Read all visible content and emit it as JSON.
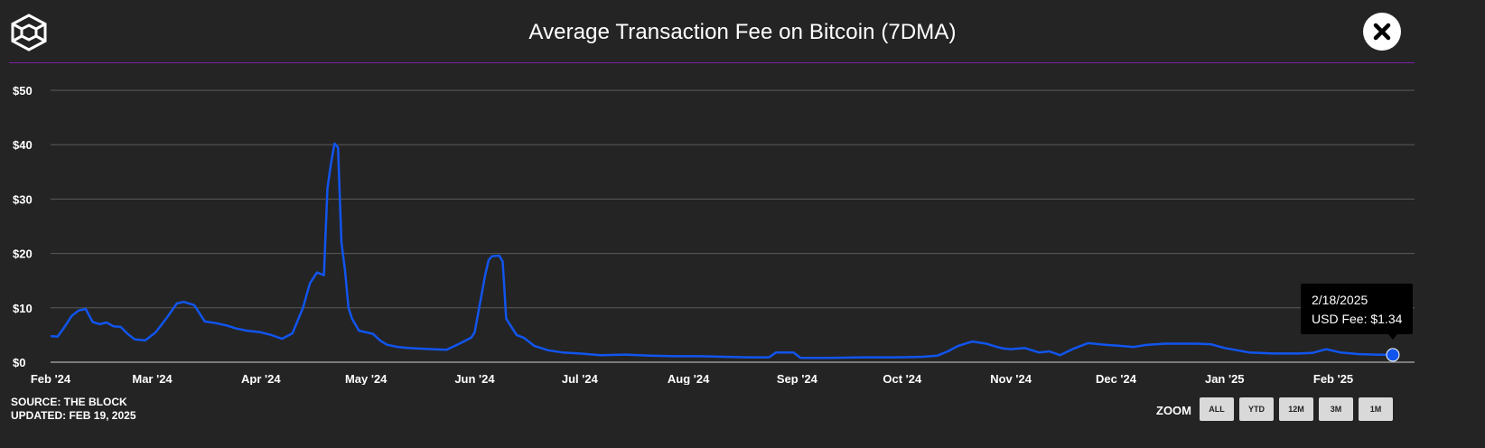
{
  "header": {
    "title": "Average Transaction Fee on Bitcoin (7DMA)",
    "logo_icon": "cube-logo-icon",
    "close_icon": "close-icon"
  },
  "footer": {
    "source": "SOURCE: THE BLOCK",
    "updated": "UPDATED: FEB 19, 2025",
    "zoom_label": "ZOOM",
    "zoom_buttons": [
      "ALL",
      "YTD",
      "12M",
      "3M",
      "1M"
    ]
  },
  "tooltip": {
    "date": "2/18/2025",
    "value_text": "USD Fee: $1.34"
  },
  "colors": {
    "line": "#1155ee",
    "accent_divider": "#7a1fa2",
    "background": "#242424",
    "grid": "#5a5a5a"
  },
  "chart_data": {
    "type": "line",
    "title": "Average Transaction Fee on Bitcoin (7DMA)",
    "xlabel": "",
    "ylabel": "",
    "ylim": [
      0,
      50
    ],
    "y_ticks": [
      0,
      10,
      20,
      30,
      40,
      50
    ],
    "y_tick_labels": [
      "$0",
      "$10",
      "$20",
      "$30",
      "$40",
      "$50"
    ],
    "x_range": [
      "2024-02-01",
      "2025-02-18"
    ],
    "x_ticks": [
      "2024-02-01",
      "2024-03-01",
      "2024-04-01",
      "2024-05-01",
      "2024-06-01",
      "2024-07-01",
      "2024-08-01",
      "2024-09-01",
      "2024-10-01",
      "2024-11-01",
      "2024-12-01",
      "2025-01-01",
      "2025-02-01"
    ],
    "x_tick_labels": [
      "Feb '24",
      "Mar '24",
      "Apr '24",
      "May '24",
      "Jun '24",
      "Jul '24",
      "Aug '24",
      "Sep '24",
      "Oct '24",
      "Nov '24",
      "Dec '24",
      "Jan '25",
      "Feb '25"
    ],
    "grid": true,
    "legend": "none",
    "series": [
      {
        "x": [
          "2024-02-01",
          "2024-02-03",
          "2024-02-05",
          "2024-02-07",
          "2024-02-09",
          "2024-02-11",
          "2024-02-13",
          "2024-02-15",
          "2024-02-17",
          "2024-02-19",
          "2024-02-21",
          "2024-02-23",
          "2024-02-25",
          "2024-02-28",
          "2024-03-02",
          "2024-03-05",
          "2024-03-08",
          "2024-03-10",
          "2024-03-13",
          "2024-03-16",
          "2024-03-19",
          "2024-03-22",
          "2024-03-25",
          "2024-03-28",
          "2024-04-01",
          "2024-04-04",
          "2024-04-07",
          "2024-04-10",
          "2024-04-13",
          "2024-04-15",
          "2024-04-17",
          "2024-04-19",
          "2024-04-20",
          "2024-04-21",
          "2024-04-22",
          "2024-04-23",
          "2024-04-24",
          "2024-04-25",
          "2024-04-26",
          "2024-04-27",
          "2024-04-29",
          "2024-05-01",
          "2024-05-03",
          "2024-05-05",
          "2024-05-07",
          "2024-05-10",
          "2024-05-13",
          "2024-05-16",
          "2024-05-20",
          "2024-05-24",
          "2024-05-28",
          "2024-05-31",
          "2024-06-01",
          "2024-06-04",
          "2024-06-05",
          "2024-06-06",
          "2024-06-08",
          "2024-06-09",
          "2024-06-10",
          "2024-06-12",
          "2024-06-13",
          "2024-06-15",
          "2024-06-18",
          "2024-06-22",
          "2024-06-26",
          "2024-07-01",
          "2024-07-07",
          "2024-07-14",
          "2024-07-21",
          "2024-07-28",
          "2024-08-04",
          "2024-08-11",
          "2024-08-18",
          "2024-08-24",
          "2024-08-26",
          "2024-08-31",
          "2024-09-02",
          "2024-09-10",
          "2024-09-20",
          "2024-09-30",
          "2024-10-07",
          "2024-10-11",
          "2024-10-14",
          "2024-10-17",
          "2024-10-21",
          "2024-10-25",
          "2024-10-28",
          "2024-10-30",
          "2024-11-01",
          "2024-11-05",
          "2024-11-09",
          "2024-11-12",
          "2024-11-15",
          "2024-11-19",
          "2024-11-23",
          "2024-11-28",
          "2024-12-02",
          "2024-12-06",
          "2024-12-10",
          "2024-12-15",
          "2024-12-19",
          "2024-12-24",
          "2024-12-28",
          "2025-01-01",
          "2025-01-08",
          "2025-01-15",
          "2025-01-22",
          "2025-01-26",
          "2025-01-30",
          "2025-02-03",
          "2025-02-08",
          "2025-02-13",
          "2025-02-18"
        ],
        "y": [
          4.8,
          4.7,
          6.5,
          8.5,
          9.5,
          9.8,
          7.4,
          7.0,
          7.3,
          6.6,
          6.5,
          5.2,
          4.2,
          4.0,
          5.5,
          8.0,
          10.8,
          11.1,
          10.5,
          7.5,
          7.2,
          6.8,
          6.2,
          5.8,
          5.5,
          5.0,
          4.3,
          5.3,
          10.0,
          14.5,
          16.5,
          16.0,
          32.0,
          36.5,
          40.2,
          39.5,
          22.0,
          17.0,
          10.0,
          8.0,
          5.8,
          5.5,
          5.2,
          4.0,
          3.2,
          2.8,
          2.6,
          2.5,
          2.4,
          2.3,
          3.5,
          4.5,
          5.5,
          16.0,
          18.8,
          19.5,
          19.6,
          18.5,
          8.0,
          6.0,
          5.0,
          4.5,
          3.0,
          2.2,
          1.8,
          1.6,
          1.3,
          1.4,
          1.2,
          1.1,
          1.1,
          1.0,
          0.9,
          0.9,
          1.8,
          1.8,
          0.8,
          0.8,
          0.9,
          0.9,
          1.0,
          1.2,
          2.0,
          3.0,
          3.8,
          3.4,
          2.8,
          2.5,
          2.4,
          2.6,
          1.8,
          2.0,
          1.3,
          2.5,
          3.5,
          3.2,
          3.0,
          2.8,
          3.2,
          3.4,
          3.4,
          3.4,
          3.3,
          2.6,
          1.8,
          1.6,
          1.6,
          1.7,
          2.4,
          1.8,
          1.5,
          1.4,
          1.34
        ]
      }
    ]
  }
}
